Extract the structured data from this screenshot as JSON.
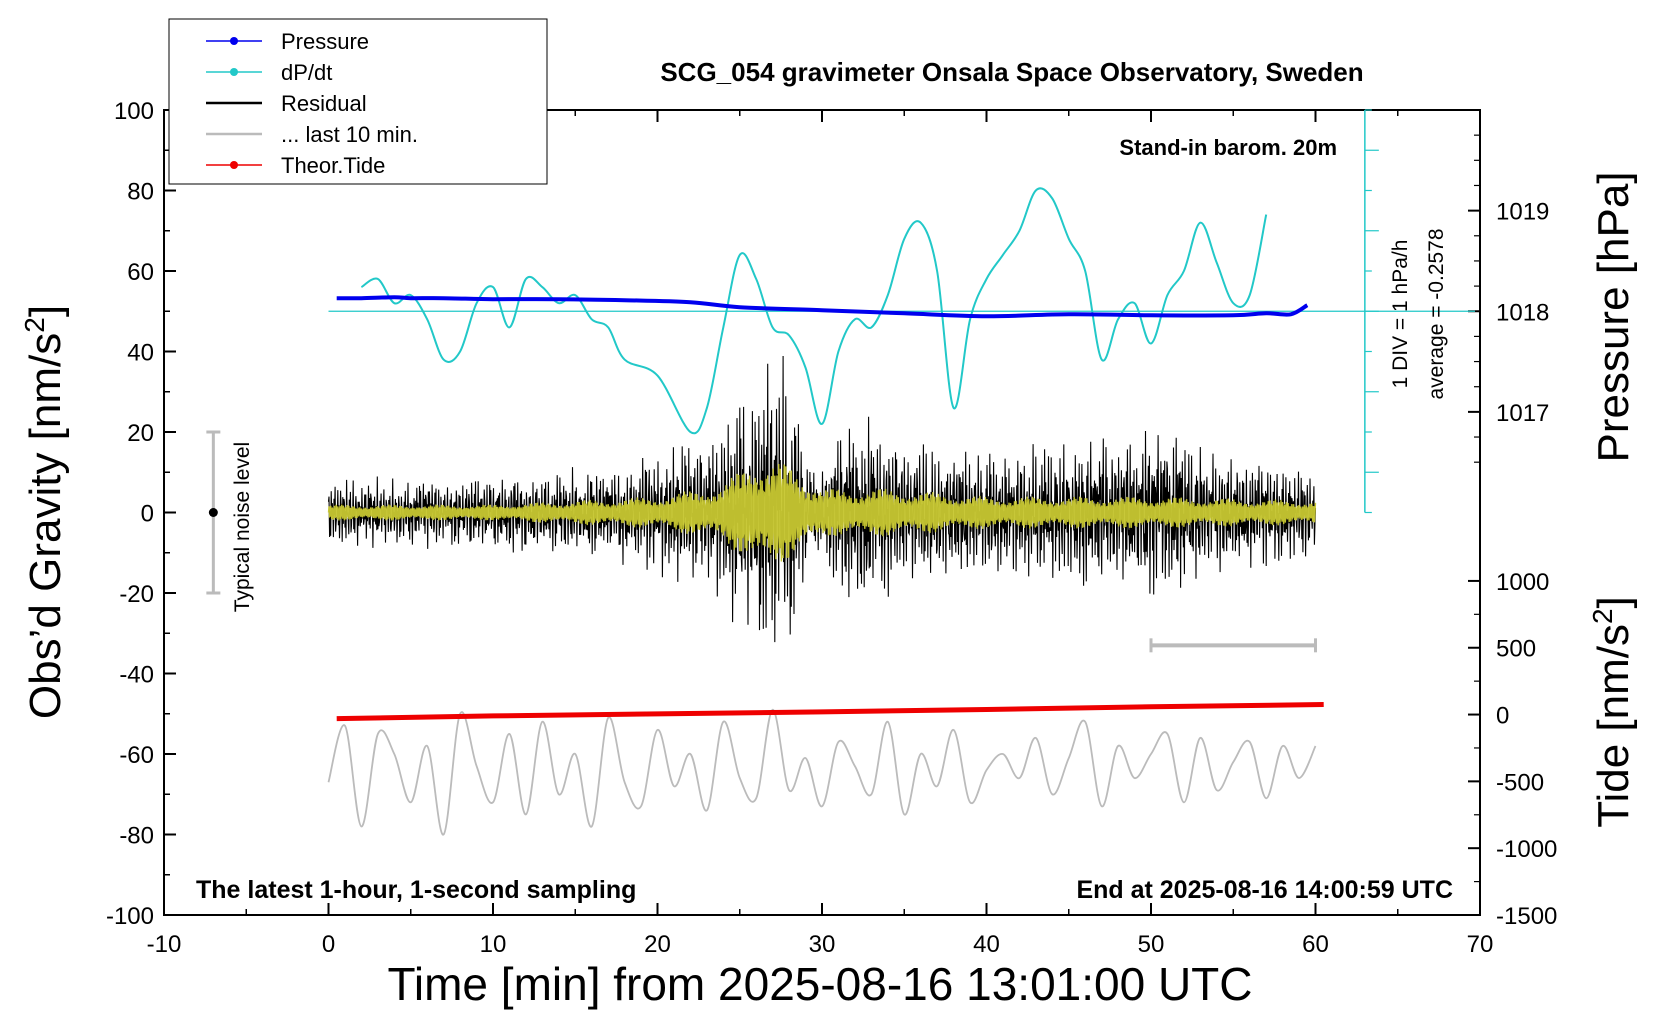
{
  "chart_data": {
    "type": "line",
    "title": "SCG_054 gravimeter Onsala Space Observatory, Sweden",
    "xlabel": "Time [min] from 2025-08-16 13:01:00 UTC",
    "ylabel_left": "Obs’d Gravity [nm/s",
    "ylabel_left_sup": "2",
    "ylabel_left_tail": "]",
    "ylabel_right_pressure": "Pressure [hPa]",
    "ylabel_right_tide": "Tide [nm/s",
    "ylabel_right_tide_sup": "2",
    "ylabel_right_tide_tail": "]",
    "xlim": [
      -10,
      70
    ],
    "ylim_left": [
      -100,
      100
    ],
    "x_ticks": [
      "-10",
      "0",
      "10",
      "20",
      "30",
      "40",
      "50",
      "60",
      "70"
    ],
    "y_ticks_left": [
      "100",
      "80",
      "60",
      "40",
      "20",
      "0",
      "-20",
      "-40",
      "-60",
      "-80",
      "-100"
    ],
    "pressure_ticks": [
      "1019",
      "1018",
      "1017"
    ],
    "tide_ticks": [
      "1000",
      "500",
      "0",
      "-500",
      "-1000",
      "-1500"
    ],
    "legend": [
      {
        "label": "Pressure",
        "color": "#0000ee",
        "style": "line-dot"
      },
      {
        "label": "dP/dt",
        "color": "#22c8c8",
        "style": "line-dot"
      },
      {
        "label": "Residual",
        "color": "#000000",
        "style": "line"
      },
      {
        "label": "... last 10 min.",
        "color": "#bbbbbb",
        "style": "line"
      },
      {
        "label": "Theor.Tide",
        "color": "#ee0000",
        "style": "line-dot"
      }
    ],
    "annotations": {
      "barometer": "Stand-in barom. 20m",
      "div_label": "1 DIV = 1 hPa/h",
      "average_label": "average = -0.2578",
      "noise_label": "Typical noise level",
      "bottom_left": "The latest 1-hour, 1-second sampling",
      "bottom_right": "End at 2025-08-16 14:00:59 UTC"
    },
    "series": [
      {
        "name": "Pressure",
        "units": "hPa",
        "color": "#0000ee",
        "x": [
          0.5,
          2,
          4,
          5,
          7,
          10,
          14,
          18,
          22,
          25,
          30,
          35,
          40,
          45,
          50,
          55,
          57,
          58.5,
          59.5
        ],
        "values": [
          1018.13,
          1018.13,
          1018.14,
          1018.13,
          1018.13,
          1018.12,
          1018.12,
          1018.11,
          1018.09,
          1018.04,
          1018.01,
          1017.98,
          1017.95,
          1017.97,
          1017.96,
          1017.96,
          1017.98,
          1017.97,
          1018.06
        ]
      },
      {
        "name": "dP/dt",
        "units": "hPa/h",
        "color": "#22c8c8",
        "x": [
          2,
          3,
          4,
          5,
          6,
          7,
          8,
          9,
          10,
          11,
          12,
          13,
          14,
          15,
          16,
          17,
          18,
          20,
          22,
          23,
          24,
          25,
          26,
          27,
          28,
          29,
          30,
          31,
          32,
          33,
          34,
          35,
          36,
          37,
          38,
          39,
          40,
          41,
          42,
          43,
          44,
          45,
          46,
          47,
          48,
          49,
          50,
          51,
          52,
          53,
          54,
          55,
          56,
          57
        ],
        "values": [
          0.3,
          0.4,
          0.1,
          0.2,
          -0.1,
          -0.6,
          -0.5,
          0.1,
          0.3,
          -0.2,
          0.4,
          0.3,
          0.1,
          0.2,
          -0.1,
          -0.2,
          -0.6,
          -0.8,
          -1.5,
          -1.2,
          -0.2,
          0.7,
          0.4,
          -0.2,
          -0.3,
          -0.7,
          -1.4,
          -0.5,
          -0.1,
          -0.2,
          0.2,
          0.9,
          1.1,
          0.5,
          -1.2,
          -0.1,
          0.4,
          0.7,
          1.0,
          1.5,
          1.4,
          0.9,
          0.5,
          -0.6,
          -0.1,
          0.1,
          -0.4,
          0.2,
          0.5,
          1.1,
          0.6,
          0.1,
          0.2,
          1.2
        ]
      },
      {
        "name": "Residual",
        "units": "nm/s^2",
        "color": "#000000",
        "envelope_x": [
          0,
          5,
          10,
          15,
          20,
          23,
          25,
          26,
          27,
          28,
          29,
          30,
          32,
          35,
          38,
          40,
          45,
          50,
          55,
          60
        ],
        "envelope_amplitude": [
          8,
          8,
          9,
          10,
          14,
          18,
          28,
          30,
          38,
          34,
          12,
          10,
          26,
          18,
          15,
          15,
          17,
          20,
          14,
          10
        ]
      },
      {
        "name": "Residual (filtered)",
        "units": "nm/s^2",
        "color": "#c8c832",
        "envelope_x": [
          0,
          10,
          20,
          24,
          26,
          28,
          30,
          34,
          40,
          50,
          60
        ],
        "envelope_amplitude": [
          2,
          2,
          4,
          7,
          14,
          12,
          6,
          6,
          4,
          4,
          3
        ]
      },
      {
        "name": "... last 10 min.",
        "units": "nm/s^2 (display offset -60)",
        "color": "#bbbbbb",
        "x": [
          0,
          1,
          2,
          3,
          4,
          5,
          6,
          7,
          8,
          9,
          10,
          11,
          12,
          13,
          14,
          15,
          16,
          17,
          18,
          19,
          20,
          21,
          22,
          23,
          24,
          25,
          26,
          27,
          28,
          29,
          30,
          31,
          32,
          33,
          34,
          35,
          36,
          37,
          38,
          39,
          40,
          41,
          42,
          43,
          44,
          45,
          46,
          47,
          48,
          49,
          50,
          51,
          52,
          53,
          54,
          55,
          56,
          57,
          58,
          59,
          60
        ],
        "values": [
          -67,
          -53,
          -78,
          -55,
          -60,
          -72,
          -58,
          -80,
          -50,
          -63,
          -72,
          -55,
          -75,
          -52,
          -70,
          -60,
          -78,
          -51,
          -67,
          -73,
          -54,
          -68,
          -60,
          -74,
          -52,
          -66,
          -71,
          -49,
          -69,
          -61,
          -73,
          -57,
          -63,
          -70,
          -52,
          -75,
          -60,
          -68,
          -54,
          -72,
          -64,
          -60,
          -66,
          -56,
          -70,
          -61,
          -52,
          -73,
          -58,
          -66,
          -60,
          -55,
          -72,
          -56,
          -69,
          -62,
          -57,
          -71,
          -58,
          -66,
          -58
        ]
      },
      {
        "name": "Theor.Tide",
        "units": "nm/s^2",
        "color": "#ee0000",
        "x": [
          0.5,
          10,
          20,
          30,
          40,
          50,
          60.5
        ],
        "values": [
          -30,
          -10,
          5,
          20,
          38,
          58,
          75
        ]
      }
    ]
  }
}
